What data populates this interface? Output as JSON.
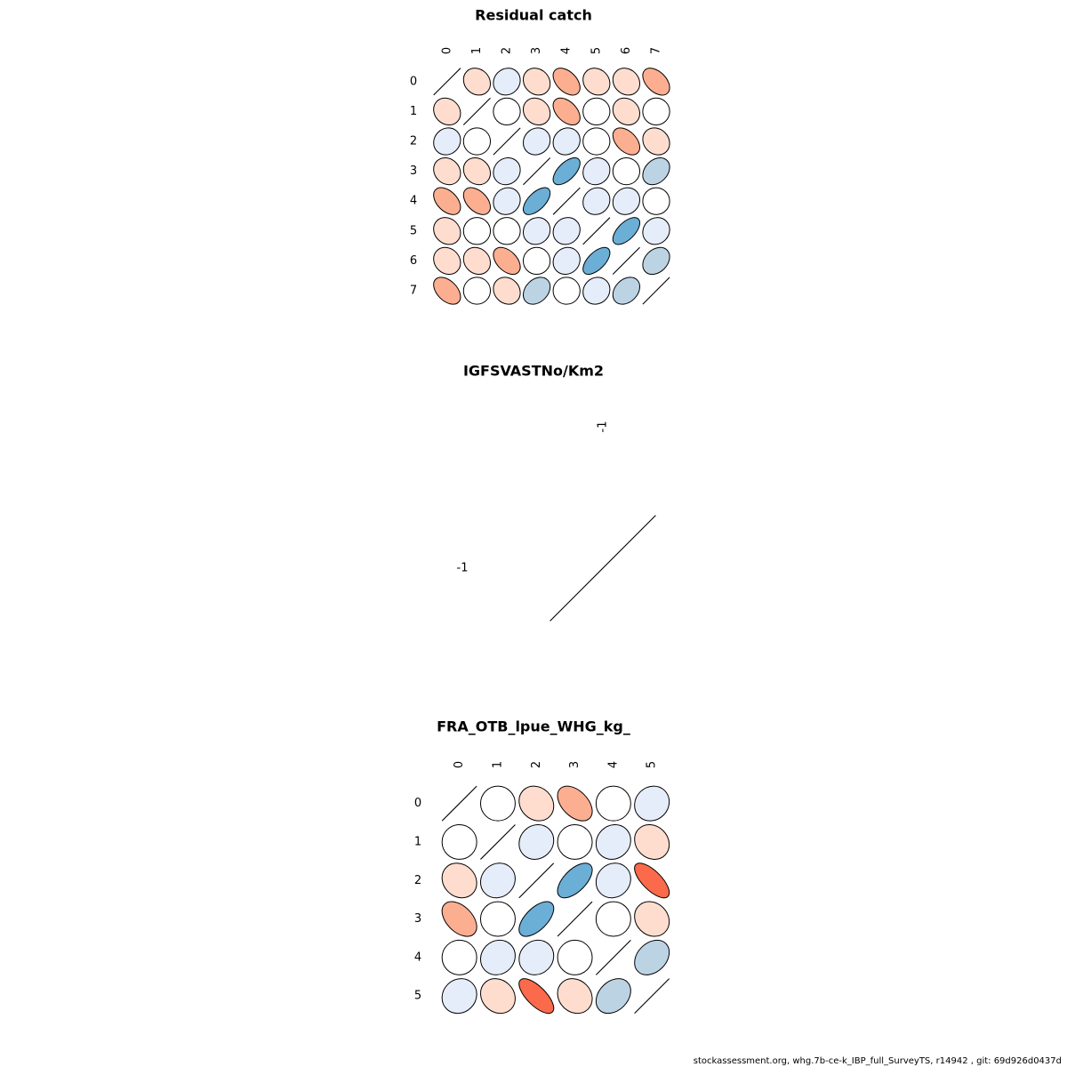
{
  "footer": "stockassessment.org, whg.7b-ce-k_IBP_full_SurveyTS, r14942 , git: 69d926d0437d",
  "chart_data": [
    {
      "type": "heatmap",
      "subtype": "correlation-ellipse-matrix",
      "title": "Residual catch",
      "labels": [
        "0",
        "1",
        "2",
        "3",
        "4",
        "5",
        "6",
        "7"
      ],
      "matrix": [
        [
          1.0,
          -0.15,
          0.1,
          -0.15,
          -0.45,
          -0.15,
          -0.15,
          -0.45
        ],
        [
          -0.15,
          1.0,
          0.0,
          -0.15,
          -0.45,
          0.0,
          -0.15,
          0.0
        ],
        [
          0.1,
          0.0,
          1.0,
          0.1,
          0.1,
          0.0,
          -0.45,
          -0.15
        ],
        [
          -0.15,
          -0.15,
          0.1,
          1.0,
          0.6,
          0.1,
          0.0,
          0.3
        ],
        [
          -0.45,
          -0.45,
          0.1,
          0.6,
          1.0,
          0.1,
          0.1,
          0.0
        ],
        [
          -0.15,
          0.0,
          0.0,
          0.1,
          0.1,
          1.0,
          0.6,
          0.1
        ],
        [
          -0.15,
          -0.15,
          -0.45,
          0.0,
          0.1,
          0.6,
          1.0,
          0.3
        ],
        [
          -0.45,
          0.0,
          -0.15,
          0.3,
          0.0,
          0.1,
          0.3,
          1.0
        ]
      ]
    },
    {
      "type": "heatmap",
      "subtype": "correlation-ellipse-matrix",
      "title": "IGFSVASTNo/Km2",
      "labels": [
        "-1"
      ],
      "matrix": [
        [
          1.0
        ]
      ]
    },
    {
      "type": "heatmap",
      "subtype": "correlation-ellipse-matrix",
      "title": "FRA_OTB_lpue_WHG_kg_",
      "labels": [
        "0",
        "1",
        "2",
        "3",
        "4",
        "5"
      ],
      "matrix": [
        [
          1.0,
          0.0,
          -0.15,
          -0.45,
          0.0,
          0.1
        ],
        [
          0.0,
          1.0,
          0.1,
          0.0,
          0.1,
          -0.15
        ],
        [
          -0.15,
          0.1,
          1.0,
          0.6,
          0.1,
          -0.7
        ],
        [
          -0.45,
          0.0,
          0.6,
          1.0,
          0.0,
          -0.15
        ],
        [
          0.0,
          0.1,
          0.1,
          0.0,
          1.0,
          0.3
        ],
        [
          0.1,
          -0.15,
          -0.7,
          -0.15,
          0.3,
          1.0
        ]
      ]
    }
  ]
}
